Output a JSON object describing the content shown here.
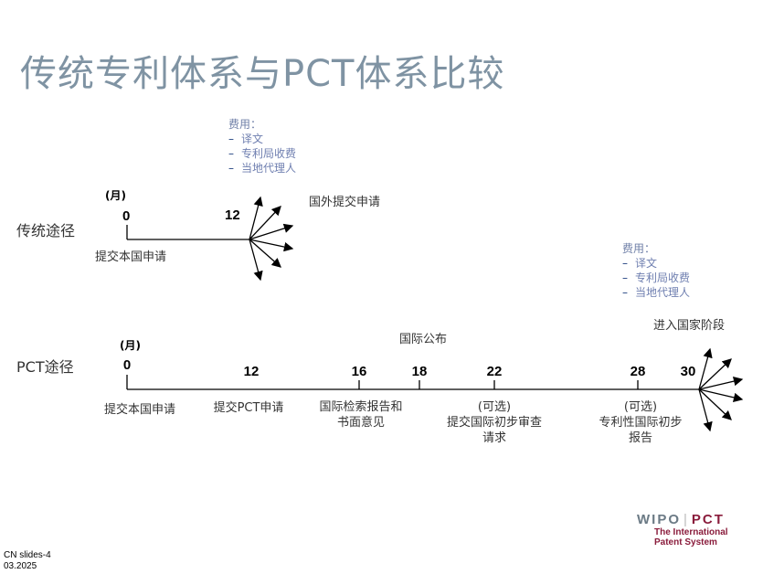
{
  "title": "传统专利体系与PCT体系比较",
  "fees_box": {
    "heading": "费用：",
    "items": [
      "译文",
      "专利局收费",
      "当地代理人"
    ]
  },
  "traditional": {
    "label": "传统途径",
    "unit": "(月)",
    "start": "0",
    "start_label": "提交本国申请",
    "end": "12",
    "end_label": "国外提交申请"
  },
  "pct": {
    "label": "PCT途径",
    "unit": "(月)",
    "publication_label": "国际公布",
    "national_phase_label": "进入国家阶段",
    "ticks": [
      {
        "value": "0",
        "label": "提交本国申请"
      },
      {
        "value": "12",
        "label": "提交PCT申请"
      },
      {
        "value": "16",
        "label": "国际检索报告和\n书面意见"
      },
      {
        "value": "18",
        "label": ""
      },
      {
        "value": "22",
        "label": "(可选)\n提交国际初步审查\n请求"
      },
      {
        "value": "28",
        "label": "(可选)\n专利性国际初步\n报告"
      },
      {
        "value": "30",
        "label": ""
      }
    ]
  },
  "logo": {
    "wipo": "WIPO",
    "pct": "PCT",
    "sub1": "The International",
    "sub2": "Patent System"
  },
  "footer": {
    "line1": "CN slides-4",
    "line2": "03.2025"
  }
}
